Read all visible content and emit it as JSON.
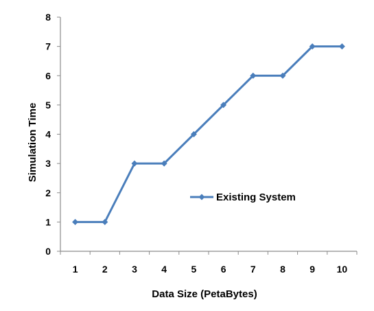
{
  "chart_data": {
    "type": "line",
    "title": "",
    "xlabel": "Data Size (PetaBytes)",
    "ylabel": "Simulation Time",
    "categories": [
      "1",
      "2",
      "3",
      "4",
      "5",
      "6",
      "7",
      "8",
      "9",
      "10"
    ],
    "y_ticks": [
      "0",
      "1",
      "2",
      "3",
      "4",
      "5",
      "6",
      "7",
      "8"
    ],
    "ylim": [
      0,
      8
    ],
    "grid": false,
    "legend_position": "center-right",
    "series": [
      {
        "name": "Existing System",
        "values": [
          1,
          1,
          3,
          3,
          4,
          5,
          6,
          6,
          7,
          7
        ],
        "color": "#4a7ebb",
        "marker": "diamond"
      }
    ]
  }
}
